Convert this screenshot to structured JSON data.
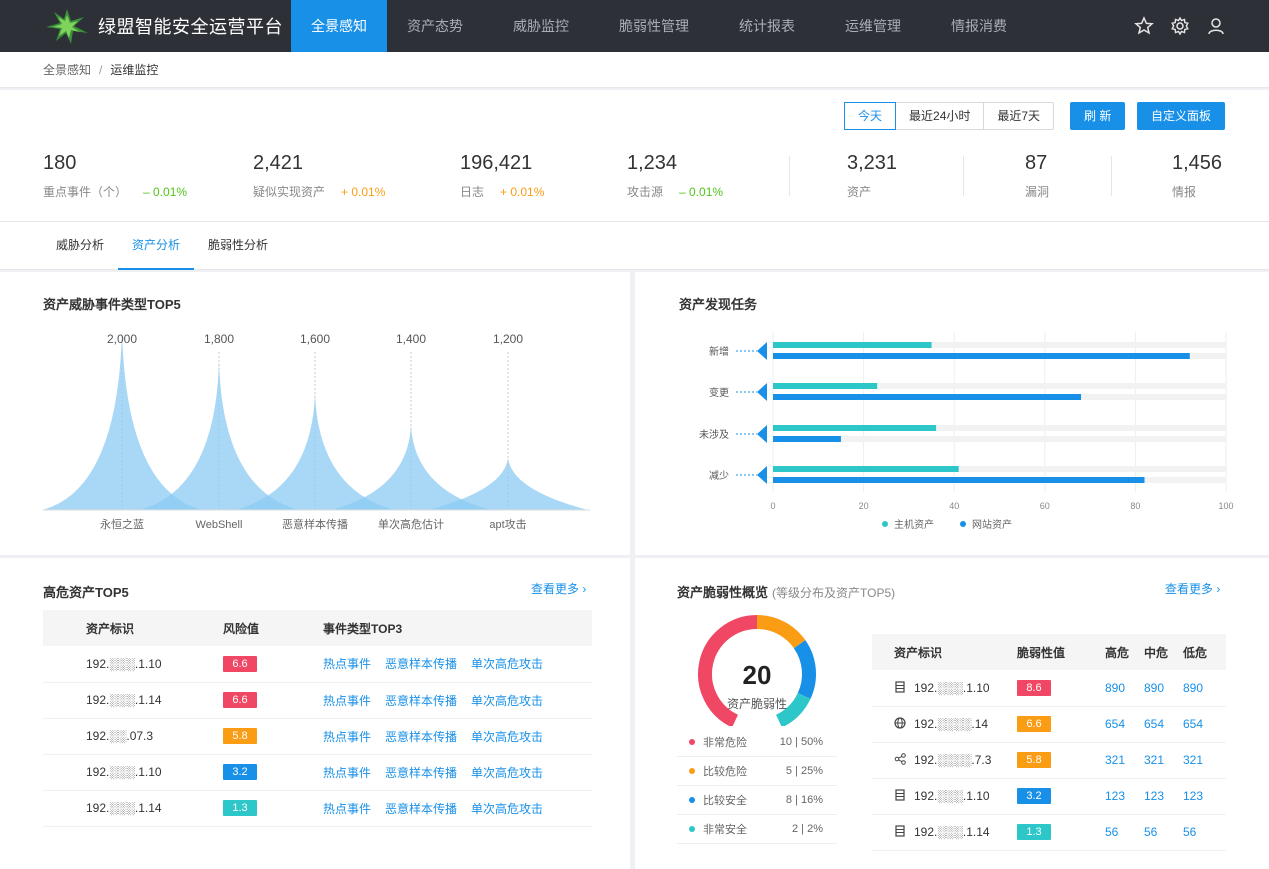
{
  "header": {
    "title": "绿盟智能安全运营平台",
    "nav": [
      "全景感知",
      "资产态势",
      "威胁监控",
      "脆弱性管理",
      "统计报表",
      "运维管理",
      "情报消费"
    ],
    "active_nav": 0
  },
  "breadcrumb": {
    "root": "全景感知",
    "sep": "/",
    "current": "运维监控"
  },
  "time_filter": {
    "options": [
      "今天",
      "最近24小时",
      "最近7天"
    ],
    "active": 0
  },
  "buttons": {
    "refresh": "刷 新",
    "custom": "自定义面板"
  },
  "stats": [
    {
      "value": "180",
      "label": "重点事件（个）",
      "change": "– 0.01%",
      "trend": "down"
    },
    {
      "value": "2,421",
      "label": "疑似实现资产",
      "change": "+ 0.01%",
      "trend": "up"
    },
    {
      "value": "196,421",
      "label": "日志",
      "change": "+ 0.01%",
      "trend": "up"
    },
    {
      "value": "1,234",
      "label": "攻击源",
      "change": "– 0.01%",
      "trend": "down"
    },
    {
      "value": "3,231",
      "label": "资产"
    },
    {
      "value": "87",
      "label": "漏洞"
    },
    {
      "value": "1,456",
      "label": "情报"
    }
  ],
  "tabs": [
    "威胁分析",
    "资产分析",
    "脆弱性分析"
  ],
  "active_tab": 1,
  "threat_top5": {
    "title": "资产威胁事件类型TOP5"
  },
  "discovery": {
    "title": "资产发现任务"
  },
  "chart_data": [
    {
      "type": "area",
      "title": "资产威胁事件类型TOP5",
      "categories": [
        "永恒之蓝",
        "WebShell",
        "恶意样本传播",
        "单次高危估计",
        "apt攻击"
      ],
      "values": [
        2000,
        1800,
        1600,
        1400,
        1200
      ],
      "value_labels": [
        "2,000",
        "1,800",
        "1,600",
        "1,400",
        "1,200"
      ],
      "color": "#8ccbf3"
    },
    {
      "type": "bar",
      "orientation": "horizontal",
      "title": "资产发现任务",
      "categories": [
        "新增",
        "变更",
        "未涉及",
        "减少"
      ],
      "series": [
        {
          "name": "主机资产",
          "values": [
            35,
            23,
            36,
            41
          ],
          "color": "#2ec7c9"
        },
        {
          "name": "网站资产",
          "values": [
            92,
            68,
            15,
            82
          ],
          "color": "#1890e8"
        }
      ],
      "xlim": [
        0,
        100
      ],
      "xticks": [
        "0",
        "20",
        "40",
        "60",
        "80",
        "100"
      ],
      "legend": "bottom"
    }
  ],
  "high_risk": {
    "title": "高危资产TOP5",
    "more": "查看更多",
    "columns": [
      "资产标识",
      "风险值",
      "事件类型TOP3"
    ],
    "rows": [
      {
        "id": "192.░░░.1.10",
        "score": "6.6",
        "color": "#f04864"
      },
      {
        "id": "192.░░░.1.14",
        "score": "6.6",
        "color": "#f04864"
      },
      {
        "id": "192.░░.07.3",
        "score": "5.8",
        "color": "#fa9d14"
      },
      {
        "id": "192.░░░.1.10",
        "score": "3.2",
        "color": "#1890e8"
      },
      {
        "id": "192.░░░.1.14",
        "score": "1.3",
        "color": "#2ec7c9"
      }
    ],
    "event_types": [
      "热点事件",
      "恶意样本传播",
      "单次高危攻击"
    ]
  },
  "vuln": {
    "title": "资产脆弱性概览",
    "subtitle": "(等级分布及资产TOP5)",
    "more": "查看更多",
    "gauge_value": "20",
    "gauge_label": "资产脆弱性",
    "levels": [
      {
        "name": "非常危险",
        "count": "10 | 50%",
        "color": "#f04864"
      },
      {
        "name": "比较危险",
        "count": "5 | 25%",
        "color": "#fa9d14"
      },
      {
        "name": "比较安全",
        "count": "8 | 16%",
        "color": "#1890e8"
      },
      {
        "name": "非常安全",
        "count": "2 |  2%",
        "color": "#2ec7c9"
      }
    ],
    "columns": [
      "资产标识",
      "脆弱性值",
      "高危",
      "中危",
      "低危"
    ],
    "rows": [
      {
        "icon": "server-icon",
        "id": "192.░░░.1.10",
        "score": "8.6",
        "color": "#f04864",
        "high": "890",
        "mid": "890",
        "low": "890"
      },
      {
        "icon": "globe-icon",
        "id": "192.░░░░.14",
        "score": "6.6",
        "color": "#fa9d14",
        "high": "654",
        "mid": "654",
        "low": "654"
      },
      {
        "icon": "network-icon",
        "id": "192.░░░░.7.3",
        "score": "5.8",
        "color": "#fa9d14",
        "high": "321",
        "mid": "321",
        "low": "321"
      },
      {
        "icon": "server-icon",
        "id": "192.░░░.1.10",
        "score": "3.2",
        "color": "#1890e8",
        "high": "123",
        "mid": "123",
        "low": "123"
      },
      {
        "icon": "server-icon",
        "id": "192.░░░.1.14",
        "score": "1.3",
        "color": "#2ec7c9",
        "high": "56",
        "mid": "56",
        "low": "56"
      }
    ]
  }
}
